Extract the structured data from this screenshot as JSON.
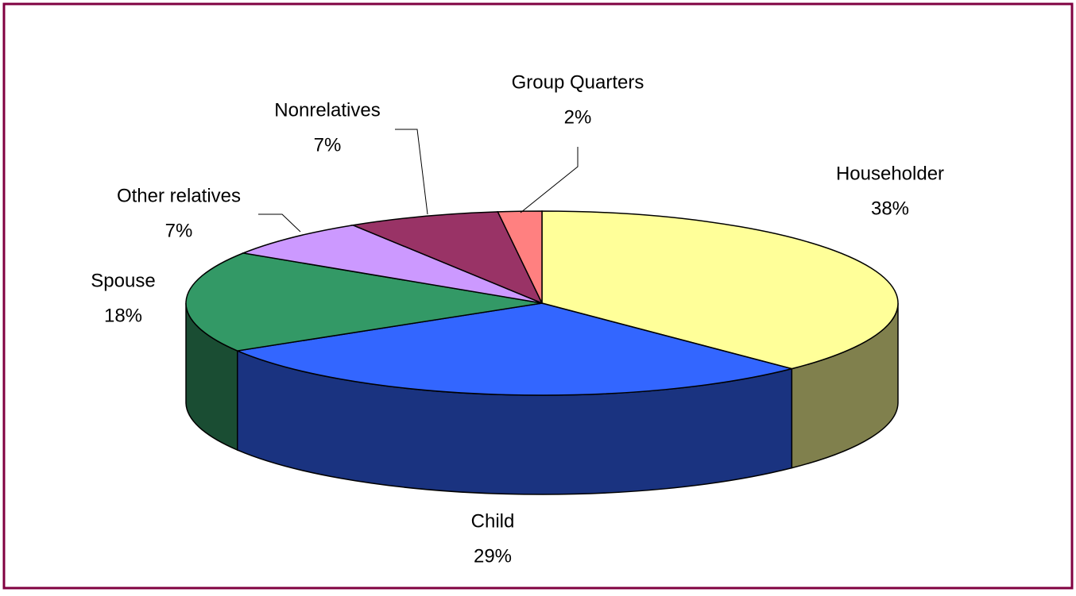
{
  "chart_data": {
    "type": "pie",
    "categories": [
      "Householder",
      "Child",
      "Spouse",
      "Other relatives",
      "Nonrelatives",
      "Group Quarters"
    ],
    "values": [
      38,
      29,
      18,
      7,
      7,
      2
    ],
    "value_labels": [
      "38%",
      "29%",
      "18%",
      "7%",
      "7%",
      "2%"
    ],
    "colors": [
      "#ffff99",
      "#3366ff",
      "#339966",
      "#cc99ff",
      "#993366",
      "#ff8080"
    ]
  }
}
